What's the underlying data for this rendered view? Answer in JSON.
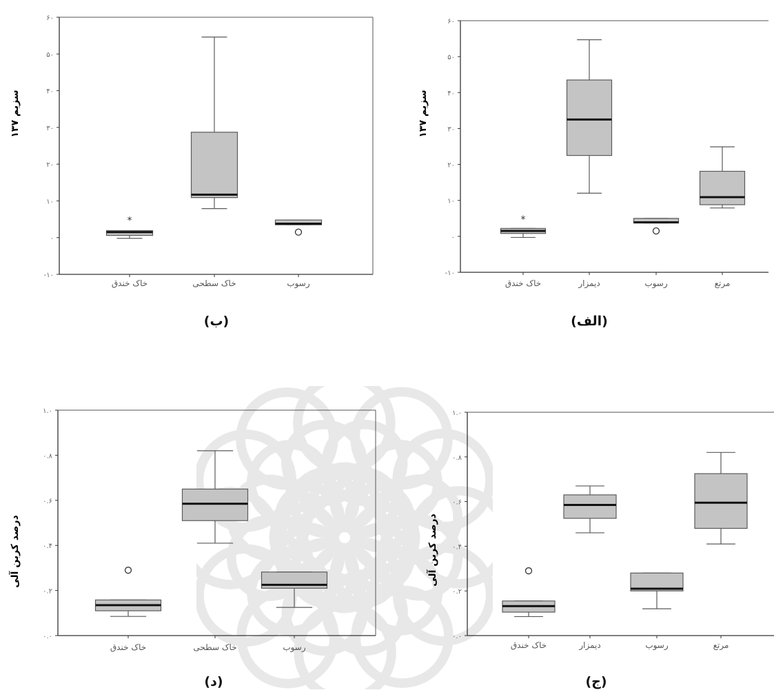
{
  "watermark": {
    "icon": "rosette-watermark-icon"
  },
  "colors": {
    "box_fill": "#c4c4c4",
    "line": "#5a5a5a",
    "median": "#111111",
    "watermark": "#777777"
  },
  "chart_data": [
    {
      "id": "alef",
      "caption": "(الف)",
      "type": "box",
      "ylabel": "سزیم ۱۳۷",
      "ylim": [
        -10,
        60
      ],
      "yticks": [
        60,
        50,
        40,
        30,
        20,
        10,
        0,
        -10
      ],
      "ytick_labels": [
        "۶۰",
        "۵۰",
        "۴۰",
        "۳۰",
        "۲۰",
        "۱۰",
        "۰",
        "-۱۰"
      ],
      "categories": [
        "خاک خندق",
        "دیمزار",
        "رسوب",
        "مرتع"
      ],
      "boxes": [
        {
          "whisker_low": -0.3,
          "q1": 0.8,
          "median": 1.5,
          "q3": 2.2,
          "whisker_high": 2.2,
          "outliers": [],
          "extremes": [
            4.8
          ]
        },
        {
          "whisker_low": 12.0,
          "q1": 22.5,
          "median": 32.5,
          "q3": 43.5,
          "whisker_high": 54.7,
          "outliers": [],
          "extremes": []
        },
        {
          "whisker_low": 3.7,
          "q1": 3.7,
          "median": 3.9,
          "q3": 5.0,
          "whisker_high": 5.0,
          "outliers": [
            1.5
          ],
          "extremes": []
        },
        {
          "whisker_low": 7.9,
          "q1": 8.8,
          "median": 10.9,
          "q3": 18.1,
          "whisker_high": 24.9,
          "outliers": [],
          "extremes": []
        }
      ]
    },
    {
      "id": "be",
      "caption": "(ب)",
      "type": "box",
      "ylabel": "سزیم ۱۳۷",
      "ylim": [
        -10,
        60
      ],
      "yticks": [
        60,
        50,
        40,
        30,
        20,
        10,
        0,
        -10
      ],
      "ytick_labels": [
        "۶۰",
        "۵۰",
        "۴۰",
        "۳۰",
        "۲۰",
        "۱۰",
        "۰",
        "-۱۰"
      ],
      "categories": [
        "خاک خندق",
        "خاک سطحی",
        "رسوب"
      ],
      "boxes": [
        {
          "whisker_low": -0.2,
          "q1": 0.6,
          "median": 1.5,
          "q3": 1.9,
          "whisker_high": 1.9,
          "outliers": [],
          "extremes": [
            4.7
          ]
        },
        {
          "whisker_low": 7.9,
          "q1": 10.9,
          "median": 11.7,
          "q3": 28.7,
          "whisker_high": 54.6,
          "outliers": [],
          "extremes": []
        },
        {
          "whisker_low": 3.5,
          "q1": 3.5,
          "median": 3.8,
          "q3": 4.8,
          "whisker_high": 4.8,
          "outliers": [
            1.5
          ],
          "extremes": []
        }
      ]
    },
    {
      "id": "jim",
      "caption": "(ج)",
      "type": "box",
      "ylabel": "درصد کربن آلی",
      "ylim": [
        0,
        1.0
      ],
      "yticks": [
        1.0,
        0.8,
        0.6,
        0.4,
        0.2,
        0.0
      ],
      "ytick_labels": [
        "۱.۰",
        "۰.۸",
        "۰.۶",
        "۰.۴",
        "۰.۲",
        "۰.۰"
      ],
      "categories": [
        "خاک خندق",
        "دیمزار",
        "رسوب",
        "مرتع"
      ],
      "boxes": [
        {
          "whisker_low": 0.085,
          "q1": 0.105,
          "median": 0.132,
          "q3": 0.155,
          "whisker_high": 0.155,
          "outliers": [
            0.29
          ],
          "extremes": []
        },
        {
          "whisker_low": 0.46,
          "q1": 0.525,
          "median": 0.585,
          "q3": 0.63,
          "whisker_high": 0.67,
          "outliers": [],
          "extremes": []
        },
        {
          "whisker_low": 0.12,
          "q1": 0.2,
          "median": 0.21,
          "q3": 0.28,
          "whisker_high": 0.28,
          "outliers": [],
          "extremes": []
        },
        {
          "whisker_low": 0.41,
          "q1": 0.48,
          "median": 0.595,
          "q3": 0.725,
          "whisker_high": 0.82,
          "outliers": [],
          "extremes": []
        }
      ]
    },
    {
      "id": "dal",
      "caption": "(د)",
      "type": "box",
      "ylabel": "درصد کربن آلی",
      "ylim": [
        0,
        1.0
      ],
      "yticks": [
        1.0,
        0.8,
        0.6,
        0.4,
        0.2,
        0.0
      ],
      "ytick_labels": [
        "۱.۰",
        "۰.۸",
        "۰.۶",
        "۰.۴",
        "۰.۲",
        "۰.۰"
      ],
      "categories": [
        "خاک خندق",
        "خاک سطحی",
        "رسوب"
      ],
      "boxes": [
        {
          "whisker_low": 0.085,
          "q1": 0.11,
          "median": 0.135,
          "q3": 0.158,
          "whisker_high": 0.158,
          "outliers": [
            0.29
          ],
          "extremes": []
        },
        {
          "whisker_low": 0.41,
          "q1": 0.51,
          "median": 0.585,
          "q3": 0.65,
          "whisker_high": 0.82,
          "outliers": [],
          "extremes": []
        },
        {
          "whisker_low": 0.125,
          "q1": 0.21,
          "median": 0.225,
          "q3": 0.282,
          "whisker_high": 0.282,
          "outliers": [],
          "extremes": []
        }
      ]
    }
  ]
}
